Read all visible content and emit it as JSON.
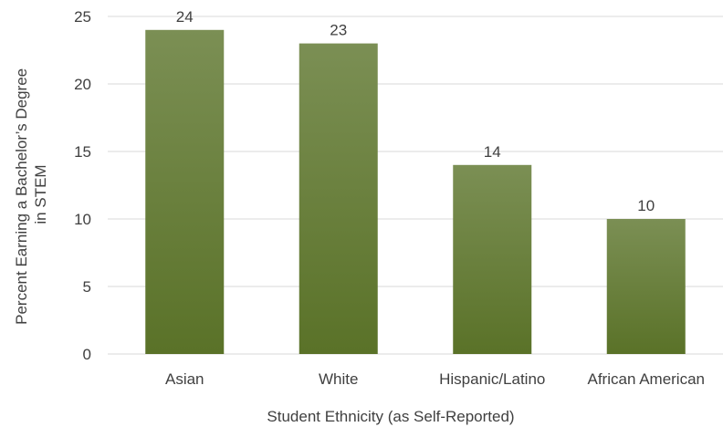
{
  "chart_data": {
    "type": "bar",
    "title": "",
    "categories": [
      "Asian",
      "White",
      "Hispanic/Latino",
      "African American"
    ],
    "values": [
      24,
      23,
      14,
      10
    ],
    "data_labels": [
      "24",
      "23",
      "14",
      "10"
    ],
    "xlabel": "Student Ethnicity (as Self-Reported)",
    "ylabel_lines": [
      "Percent Earning a Bachelor’s Degree",
      "in STEM"
    ],
    "ylim": [
      0,
      25
    ],
    "yticks": [
      0,
      5,
      10,
      15,
      20,
      25
    ],
    "grid": true,
    "legend": "none",
    "colors": {
      "bar_top": "#7b8f54",
      "bar_bottom": "#5a7228",
      "grid": "#d9d9d9",
      "text": "#404040"
    }
  }
}
